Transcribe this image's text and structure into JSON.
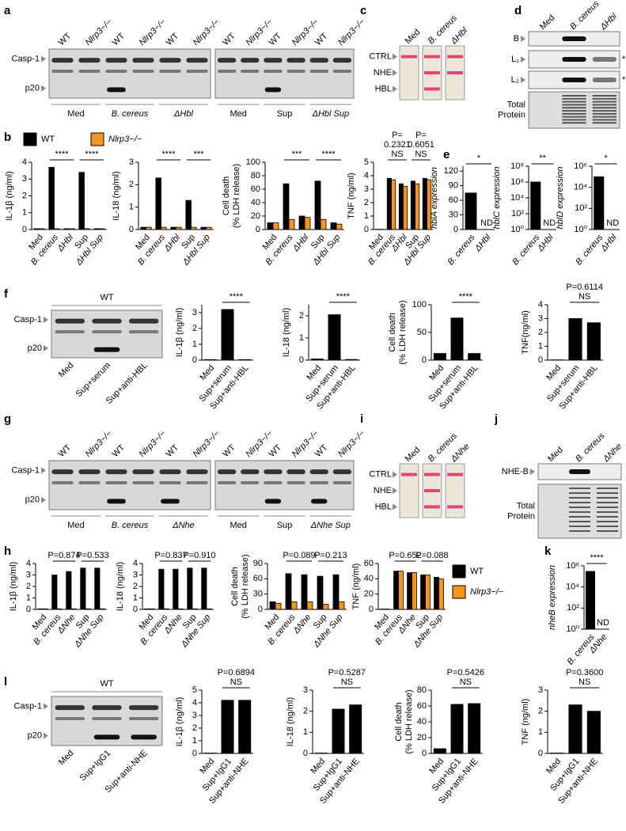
{
  "panels": [
    "a",
    "b",
    "c",
    "d",
    "e",
    "f",
    "g",
    "h",
    "i",
    "j",
    "k",
    "l"
  ],
  "blots": [
    {
      "rows": [
        "Casp-1",
        "p20"
      ],
      "lanes": [
        "WT",
        "Nlrp3−/−",
        "WT",
        "Nlrp3−/−",
        "WT",
        "Nlrp3−/−"
      ],
      "groups": [
        "Med",
        "B. cereus",
        "ΔHbl"
      ]
    },
    {
      "lanes": [
        "WT",
        "Nlrp3−/−",
        "WT",
        "Nlrp3−/−",
        "WT",
        "Nlrp3−/−"
      ],
      "groups": [
        "Med",
        "Sup",
        "ΔHbl Sup"
      ]
    },
    {
      "header": "WT",
      "rows": [
        "Casp-1",
        "p20"
      ],
      "lanes": [
        "Med",
        "Sup+serum",
        "Sup+anti-HBL"
      ]
    },
    {
      "rows": [
        "Casp-1",
        "p20"
      ],
      "lanes": [
        "WT",
        "Nlrp3−/−",
        "WT",
        "Nlrp3−/−",
        "WT",
        "Nlrp3−/−"
      ],
      "groups": [
        "Med",
        "B. cereus",
        "ΔNhe"
      ]
    },
    {
      "lanes": [
        "WT",
        "Nlrp3−/−",
        "WT",
        "Nlrp3−/−",
        "WT",
        "Nlrp3−/−"
      ],
      "groups": [
        "Med",
        "Sup",
        "ΔNhe Sup"
      ]
    },
    {
      "header": "WT",
      "rows": [
        "Casp-1",
        "p20"
      ],
      "lanes": [
        "Med",
        "Sup+IgG1",
        "Sup+anti-NHE"
      ]
    }
  ],
  "gels": [
    {
      "columns": [
        "Med",
        "B. cereus",
        "ΔHbl"
      ],
      "rows": [
        "CTRL",
        "NHE",
        "HBL"
      ]
    },
    {
      "columns": [
        "Med",
        "B. cereus",
        "ΔNhe"
      ],
      "rows": [
        "CTRL",
        "NHE",
        "HBL"
      ]
    }
  ],
  "membranes": [
    {
      "columns": [
        "Med",
        "B. cereus",
        "ΔHbl"
      ],
      "rows": [
        [
          "B"
        ],
        [
          "L₁"
        ],
        [
          "L₂"
        ],
        [
          "Total",
          "Protein"
        ]
      ],
      "row_notes": [
        null,
        "*",
        "*",
        null
      ]
    },
    {
      "columns": [
        "Med",
        "B. cereus",
        "ΔNhe"
      ],
      "rows": [
        [
          "NHE-B"
        ],
        [
          "Total",
          "Protein"
        ]
      ],
      "row_notes": [
        null,
        null
      ]
    }
  ],
  "legends": [
    [
      {
        "name": "WT",
        "color": "#000000"
      },
      {
        "name": "Nlrp3−/−",
        "color": "#f7941d"
      }
    ],
    [
      {
        "name": "WT",
        "color": "#000000"
      },
      {
        "name": "Nlrp3−/−",
        "color": "#f7941d"
      }
    ]
  ],
  "chart_data": [
    {
      "type": "bar",
      "ylabel": [
        "IL-1β (ng/ml)"
      ],
      "categories": [
        "Med",
        "B. cereus",
        "ΔHbl",
        "Sup",
        "ΔHbl Sup"
      ],
      "series": [
        {
          "color": "#000000",
          "values": [
            0.05,
            3.7,
            0.05,
            3.4,
            0.05
          ]
        },
        {
          "color": "#f7941d",
          "values": [
            0.05,
            0.05,
            0.05,
            0.05,
            0.05
          ]
        }
      ],
      "ylim": [
        0,
        4
      ],
      "yticks": [
        0,
        1,
        2,
        3,
        4
      ],
      "annotations": [
        [
          "****"
        ],
        [
          "****"
        ]
      ]
    },
    {
      "type": "bar",
      "ylabel": [
        "IL-18 (ng/ml)"
      ],
      "categories": [
        "Med",
        "B. cereus",
        "ΔHbl",
        "Sup",
        "ΔHbl Sup"
      ],
      "series": [
        {
          "color": "#000000",
          "values": [
            0.1,
            2.3,
            0.1,
            1.3,
            0.1
          ]
        },
        {
          "color": "#f7941d",
          "values": [
            0.1,
            0.1,
            0.1,
            0.1,
            0.1
          ]
        }
      ],
      "ylim": [
        0,
        3
      ],
      "yticks": [
        0,
        1,
        2,
        3
      ],
      "annotations": [
        [
          "****"
        ],
        [
          "***"
        ]
      ]
    },
    {
      "type": "bar",
      "ylabel": [
        "Cell death",
        "(% LDH release)"
      ],
      "categories": [
        "Med",
        "B. cereus",
        "ΔHbl",
        "Sup",
        "ΔHbl Sup"
      ],
      "series": [
        {
          "color": "#000000",
          "values": [
            10,
            68,
            20,
            72,
            10
          ]
        },
        {
          "color": "#f7941d",
          "values": [
            10,
            15,
            18,
            15,
            8
          ]
        }
      ],
      "ylim": [
        0,
        100
      ],
      "yticks": [
        0,
        20,
        40,
        60,
        80,
        100
      ],
      "annotations": [
        [
          "***"
        ],
        [
          "****"
        ]
      ]
    },
    {
      "type": "bar",
      "ylabel": [
        "TNF (ng/ml)"
      ],
      "categories": [
        "Med",
        "B. cereus",
        "ΔHbl",
        "Sup",
        "ΔHbl Sup"
      ],
      "series": [
        {
          "color": "#000000",
          "values": [
            0.02,
            3.8,
            3.4,
            3.6,
            3.8
          ]
        },
        {
          "color": "#f7941d",
          "values": [
            0.02,
            3.7,
            3.2,
            3.4,
            3.7
          ]
        }
      ],
      "ylim": [
        0,
        5
      ],
      "yticks": [
        0,
        1,
        2,
        3,
        4,
        5
      ],
      "annotations": [
        [
          "P=",
          "0.2321",
          "NS"
        ],
        [
          "P=",
          "0.6051",
          "NS"
        ]
      ]
    },
    {
      "type": "bar",
      "ylabel": [
        "hblA expression"
      ],
      "categories": [
        "B. cereus",
        "ΔHbl"
      ],
      "series": [
        {
          "color": "#000000",
          "values": [
            75,
            null
          ],
          "value_labels": [
            null,
            "ND"
          ]
        }
      ],
      "ylim": [
        0,
        130
      ],
      "yticks": [
        0,
        30,
        60,
        90,
        120
      ],
      "annotations": [
        [
          "*"
        ]
      ]
    },
    {
      "type": "bar",
      "log": true,
      "ylabel": [
        "hblC expression"
      ],
      "categories": [
        "B. cereus",
        "ΔHbl"
      ],
      "series": [
        {
          "color": "#000000",
          "values": [
            1000000,
            null
          ],
          "value_labels": [
            null,
            "ND"
          ]
        }
      ],
      "ylim": [
        1,
        100000000
      ],
      "yticks": [
        {
          "value": 1,
          "label": "10⁰"
        },
        {
          "value": 100,
          "label": "10²"
        },
        {
          "value": 10000,
          "label": "10⁴"
        },
        {
          "value": 1000000,
          "label": "10⁶"
        },
        {
          "value": 100000000,
          "label": "10⁸"
        }
      ],
      "annotations": [
        [
          "**"
        ]
      ]
    },
    {
      "type": "bar",
      "log": true,
      "ylabel": [
        "hblD expression"
      ],
      "categories": [
        "B. cereus",
        "ΔHbl"
      ],
      "series": [
        {
          "color": "#000000",
          "values": [
            100000,
            null
          ],
          "value_labels": [
            null,
            "ND"
          ]
        }
      ],
      "ylim": [
        1,
        1000000
      ],
      "yticks": [
        {
          "value": 1,
          "label": "10⁰"
        },
        {
          "value": 100,
          "label": "10²"
        },
        {
          "value": 10000,
          "label": "10⁴"
        },
        {
          "value": 1000000,
          "label": "10⁶"
        }
      ],
      "annotations": [
        [
          "*"
        ]
      ]
    },
    {
      "type": "bar",
      "ylabel": [
        "IL-1β (ng/ml)"
      ],
      "categories": [
        "Med",
        "Sup+serum",
        "Sup+anti-HBL"
      ],
      "series": [
        {
          "color": "#000000",
          "values": [
            0.03,
            3.2,
            0.03
          ]
        }
      ],
      "ylim": [
        0,
        3.5
      ],
      "yticks": [
        0,
        1,
        2,
        3
      ],
      "annotations": [
        [
          "****"
        ]
      ]
    },
    {
      "type": "bar",
      "ylabel": [
        "IL-18 (ng/ml)"
      ],
      "categories": [
        "Med",
        "Sup+serum",
        "Sup+anti-HBL"
      ],
      "series": [
        {
          "color": "#000000",
          "values": [
            0.05,
            2.05,
            0.03
          ]
        }
      ],
      "ylim": [
        0,
        2.5
      ],
      "yticks": [
        0,
        1,
        2
      ],
      "annotations": [
        [
          "****"
        ]
      ]
    },
    {
      "type": "bar",
      "ylabel": [
        "Cell death",
        "(% LDH release)"
      ],
      "categories": [
        "Med",
        "Sup+serum",
        "Sup+anti-HBL"
      ],
      "series": [
        {
          "color": "#000000",
          "values": [
            12,
            76,
            12
          ]
        }
      ],
      "ylim": [
        0,
        100
      ],
      "yticks": [
        0,
        50,
        100
      ],
      "annotations": [
        [
          "****"
        ]
      ]
    },
    {
      "type": "bar",
      "ylabel": [
        "TNF(ng/ml)"
      ],
      "categories": [
        "Med",
        "Sup+serum",
        "Sup+anti-HBL"
      ],
      "series": [
        {
          "color": "#000000",
          "values": [
            0.02,
            3,
            2.7
          ]
        }
      ],
      "ylim": [
        0,
        4
      ],
      "yticks": [
        0,
        1,
        2,
        3,
        4
      ],
      "annotations": [
        [
          "P=0.6114",
          "NS"
        ]
      ]
    },
    {
      "type": "bar",
      "ylabel": [
        "IL-1β (ng/ml)"
      ],
      "categories": [
        "Med",
        "B. cereus",
        "ΔNhe",
        "Sup",
        "ΔNhe Sup"
      ],
      "series": [
        {
          "color": "#000000",
          "values": [
            0.05,
            3.0,
            3.3,
            3.6,
            3.6
          ]
        },
        {
          "color": "#f7941d",
          "values": [
            0.05,
            0.05,
            0.05,
            0.05,
            0.05
          ]
        }
      ],
      "ylim": [
        0,
        4
      ],
      "yticks": [
        0,
        1,
        2,
        3,
        4
      ],
      "annotations": [
        [
          "P=0.874"
        ],
        [
          "P=0.533"
        ]
      ]
    },
    {
      "type": "bar",
      "ylabel": [
        "IL-18 (ng/ml)"
      ],
      "categories": [
        "Med",
        "B. cereus",
        "ΔNhe",
        "Sup",
        "ΔNhe Sup"
      ],
      "series": [
        {
          "color": "#000000",
          "values": [
            0.05,
            3.5,
            3.5,
            3.6,
            3.6
          ]
        },
        {
          "color": "#f7941d",
          "values": [
            0.05,
            0.05,
            0.05,
            0.05,
            0.05
          ]
        }
      ],
      "ylim": [
        0,
        4
      ],
      "yticks": [
        0,
        1,
        2,
        3,
        4
      ],
      "annotations": [
        [
          "P=0.837"
        ],
        [
          "P=0.910"
        ]
      ]
    },
    {
      "type": "bar",
      "ylabel": [
        "Cell death",
        "(% LDH release)"
      ],
      "categories": [
        "Med",
        "B. cereus",
        "ΔNhe",
        "Sup",
        "ΔNhe Sup"
      ],
      "series": [
        {
          "color": "#000000",
          "values": [
            15,
            70,
            68,
            65,
            68
          ]
        },
        {
          "color": "#f7941d",
          "values": [
            12,
            15,
            15,
            10,
            15
          ]
        }
      ],
      "ylim": [
        0,
        90
      ],
      "yticks": [
        0,
        30,
        60,
        90
      ],
      "annotations": [
        [
          "P=0.089"
        ],
        [
          "P=0.213"
        ]
      ]
    },
    {
      "type": "bar",
      "ylabel": [
        "TNF (ng/ml)"
      ],
      "categories": [
        "Med",
        "B. cereus",
        "ΔNhe",
        "Sup",
        "ΔNhe Sup"
      ],
      "series": [
        {
          "color": "#000000",
          "values": [
            0.5,
            50,
            48,
            45,
            42
          ]
        },
        {
          "color": "#f7941d",
          "values": [
            0.5,
            50,
            48,
            45,
            40
          ]
        }
      ],
      "ylim": [
        0,
        60
      ],
      "yticks": [
        0,
        20,
        40,
        60
      ],
      "annotations": [
        [
          "P=0.652"
        ],
        [
          "P=0.088"
        ]
      ]
    },
    {
      "type": "bar",
      "log": true,
      "ylabel": [
        "nheB expression"
      ],
      "categories": [
        "B. cereus",
        "ΔNhe"
      ],
      "series": [
        {
          "color": "#000000",
          "values": [
            300000,
            null
          ],
          "value_labels": [
            null,
            "ND"
          ]
        }
      ],
      "ylim": [
        1,
        1000000
      ],
      "yticks": [
        {
          "value": 1,
          "label": "10⁰"
        },
        {
          "value": 100,
          "label": "10²"
        },
        {
          "value": 10000,
          "label": "10⁴"
        },
        {
          "value": 1000000,
          "label": "10⁶"
        }
      ],
      "annotations": [
        [
          "****"
        ]
      ]
    },
    {
      "type": "bar",
      "ylabel": [
        "IL-1β (ng/ml)"
      ],
      "categories": [
        "Med",
        "Sup+IgG1",
        "Sup+anti-NHE"
      ],
      "series": [
        {
          "color": "#000000",
          "values": [
            0.03,
            4.2,
            4.2
          ]
        }
      ],
      "ylim": [
        0,
        5
      ],
      "yticks": [
        0,
        1,
        2,
        3,
        4,
        5
      ],
      "annotations": [
        [
          "P=0.6894",
          "NS"
        ]
      ]
    },
    {
      "type": "bar",
      "ylabel": [
        "IL-18 (ng/ml)"
      ],
      "categories": [
        "Med",
        "Sup+IgG1",
        "Sup+anti-NHE"
      ],
      "series": [
        {
          "color": "#000000",
          "values": [
            0.02,
            2.1,
            2.3
          ]
        }
      ],
      "ylim": [
        0,
        3
      ],
      "yticks": [
        0,
        1,
        2,
        3
      ],
      "annotations": [
        [
          "P=0.5287",
          "NS"
        ]
      ]
    },
    {
      "type": "bar",
      "ylabel": [
        "Cell death",
        "(% LDH release)"
      ],
      "categories": [
        "Med",
        "Sup+IgG1",
        "Sup+anti-NHE"
      ],
      "series": [
        {
          "color": "#000000",
          "values": [
            6,
            62,
            63
          ]
        }
      ],
      "ylim": [
        0,
        80
      ],
      "yticks": [
        0,
        20,
        40,
        60,
        80
      ],
      "annotations": [
        [
          "P=0.5426",
          "NS"
        ]
      ]
    },
    {
      "type": "bar",
      "ylabel": [
        "TNF (ng/ml)"
      ],
      "categories": [
        "Med",
        "Sup+IgG1",
        "Sup+anti-NHE"
      ],
      "series": [
        {
          "color": "#000000",
          "values": [
            0.02,
            2.3,
            2.0
          ]
        }
      ],
      "ylim": [
        0,
        3
      ],
      "yticks": [
        0,
        1,
        2,
        3
      ],
      "annotations": [
        [
          "P=0.3600",
          "NS"
        ]
      ]
    }
  ]
}
